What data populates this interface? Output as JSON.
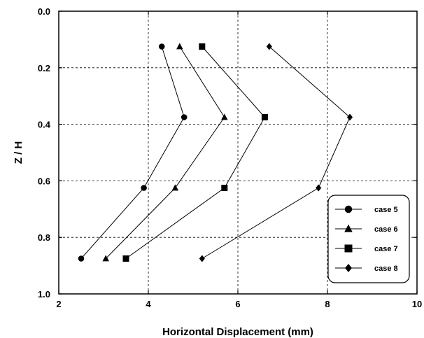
{
  "chart_data": {
    "type": "scatter",
    "xlabel": "Horizontal Displacement  (mm)",
    "ylabel": "Z / H",
    "xlim": [
      2,
      10
    ],
    "ylim": [
      0.0,
      1.0
    ],
    "y_inverted": true,
    "grid": true,
    "legend_position": "bottom-right",
    "x_ticks": [
      2,
      4,
      6,
      8,
      10
    ],
    "y_ticks": [
      0.0,
      0.2,
      0.4,
      0.6,
      0.8,
      1.0
    ],
    "x_tick_labels": [
      "2",
      "4",
      "6",
      "8",
      "10"
    ],
    "y_tick_labels": [
      "0.0",
      "0.2",
      "0.4",
      "0.6",
      "0.8",
      "1.0"
    ],
    "series": [
      {
        "name": "case 5",
        "marker": "circle",
        "points": [
          [
            4.3,
            0.125
          ],
          [
            4.8,
            0.375
          ],
          [
            3.9,
            0.625
          ],
          [
            2.5,
            0.875
          ]
        ]
      },
      {
        "name": "case 6",
        "marker": "triangle",
        "points": [
          [
            4.7,
            0.125
          ],
          [
            5.7,
            0.375
          ],
          [
            4.6,
            0.625
          ],
          [
            3.05,
            0.875
          ]
        ]
      },
      {
        "name": "case 7",
        "marker": "square",
        "points": [
          [
            5.2,
            0.125
          ],
          [
            6.6,
            0.375
          ],
          [
            5.7,
            0.625
          ],
          [
            3.5,
            0.875
          ]
        ]
      },
      {
        "name": "case 8",
        "marker": "diamond",
        "points": [
          [
            6.7,
            0.125
          ],
          [
            8.5,
            0.375
          ],
          [
            7.8,
            0.625
          ],
          [
            5.2,
            0.875
          ]
        ]
      }
    ]
  }
}
